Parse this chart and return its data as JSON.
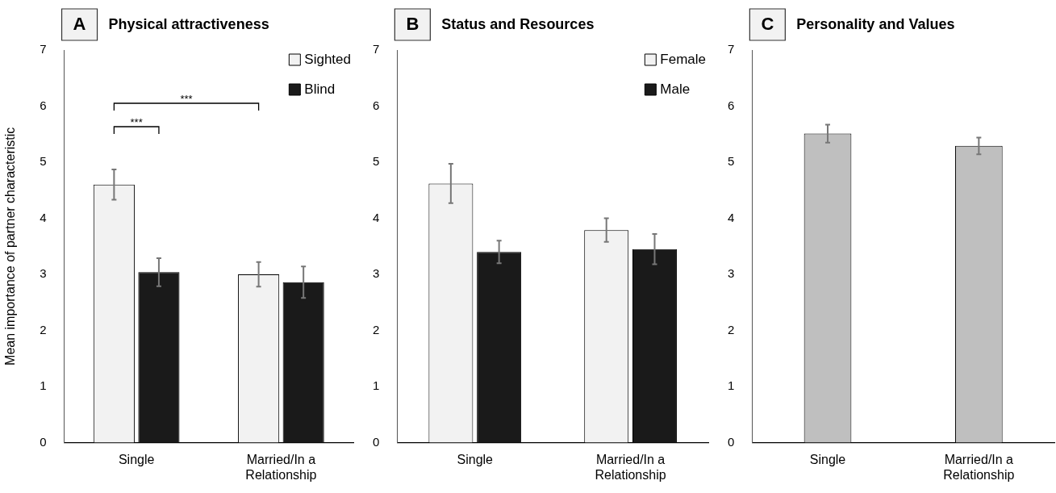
{
  "chart_data": [
    {
      "type": "bar",
      "title": "Physical attractiveness",
      "ylabel": "Mean importance of partner characteristic",
      "categories": [
        "Single",
        "Married/In a Relationship"
      ],
      "series": [
        {
          "name": "Sighted",
          "color": "#f2f2f2",
          "values": [
            4.6,
            3.0
          ],
          "errors": [
            0.27,
            0.22
          ]
        },
        {
          "name": "Blind",
          "color": "#1a1a1a",
          "values": [
            3.04,
            2.86
          ],
          "errors": [
            0.25,
            0.28
          ]
        }
      ],
      "ylim": [
        0,
        7
      ],
      "yticks": [
        0,
        1,
        2,
        3,
        4,
        5,
        6,
        7
      ],
      "grid": false,
      "legend": "top right",
      "annotations": [
        "A",
        "***",
        "***"
      ]
    },
    {
      "type": "bar",
      "title": "Status and Resources",
      "categories": [
        "Single",
        "Married/In a Relationship"
      ],
      "series": [
        {
          "name": "Female",
          "color": "#f2f2f2",
          "values": [
            4.62,
            3.79
          ],
          "errors": [
            0.35,
            0.21
          ]
        },
        {
          "name": "Male",
          "color": "#1a1a1a",
          "values": [
            3.4,
            3.45
          ],
          "errors": [
            0.2,
            0.27
          ]
        }
      ],
      "ylim": [
        0,
        7
      ],
      "yticks": [
        0,
        1,
        2,
        3,
        4,
        5,
        6,
        7
      ],
      "grid": false,
      "legend": "top right",
      "annotations": [
        "B"
      ]
    },
    {
      "type": "bar",
      "title": "Personality and Values",
      "categories": [
        "Single",
        "Married/In a Relationship"
      ],
      "series": [
        {
          "color": "#bfbfbf",
          "values": [
            5.51,
            5.29
          ],
          "errors": [
            0.16,
            0.15
          ]
        }
      ],
      "ylim": [
        0,
        7
      ],
      "yticks": [
        0,
        1,
        2,
        3,
        4,
        5,
        6,
        7
      ],
      "grid": false,
      "legend": false,
      "annotations": [
        "C"
      ]
    }
  ]
}
